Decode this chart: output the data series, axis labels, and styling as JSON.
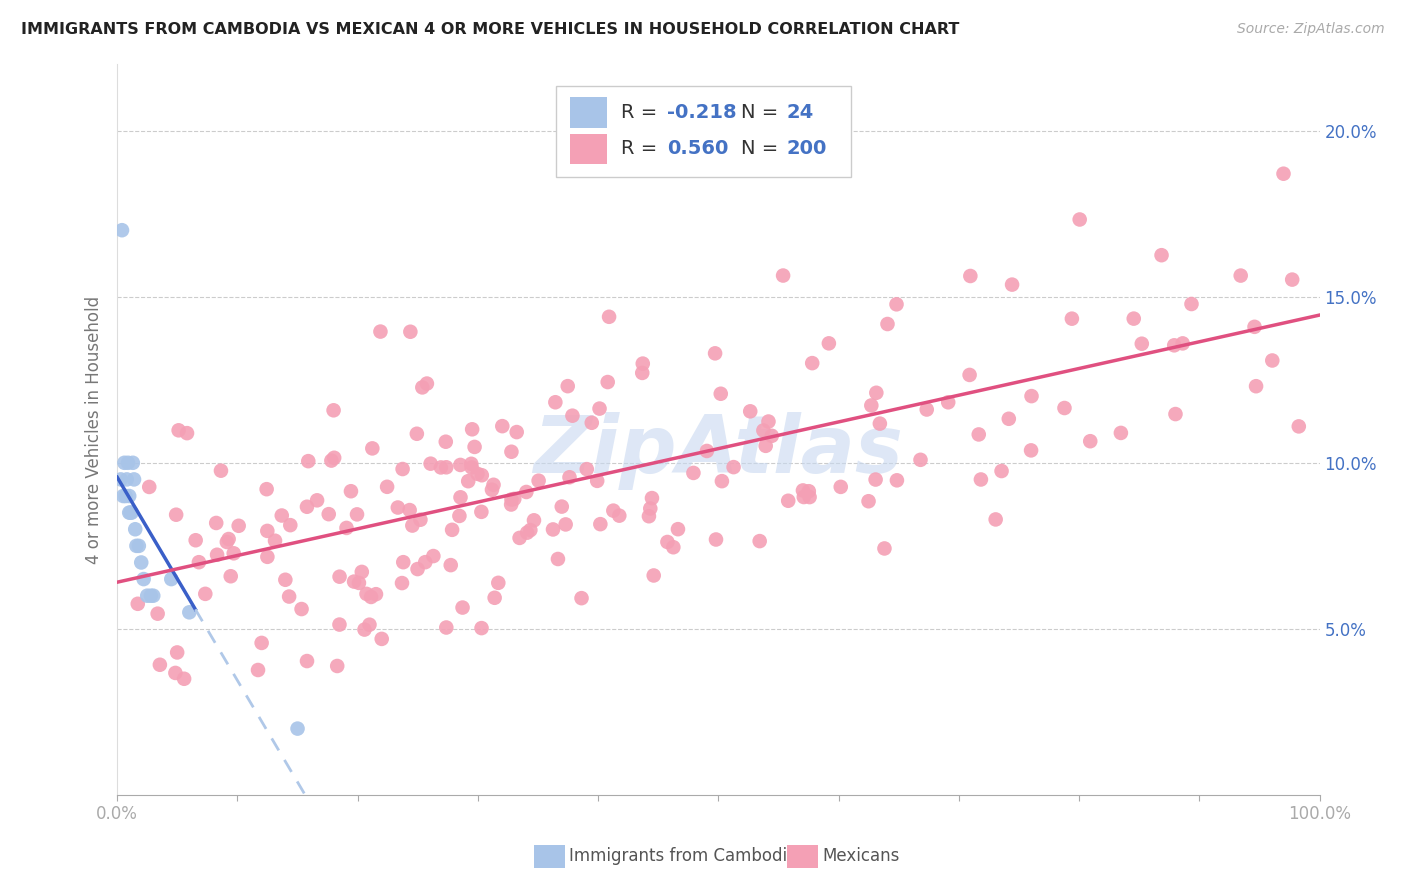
{
  "title": "IMMIGRANTS FROM CAMBODIA VS MEXICAN 4 OR MORE VEHICLES IN HOUSEHOLD CORRELATION CHART",
  "source": "Source: ZipAtlas.com",
  "ylabel": "4 or more Vehicles in Household",
  "xlim": [
    0.0,
    1.0
  ],
  "ylim": [
    0.0,
    0.22
  ],
  "xticks": [
    0.0,
    0.1,
    0.2,
    0.3,
    0.4,
    0.5,
    0.6,
    0.7,
    0.8,
    0.9,
    1.0
  ],
  "xticklabels": [
    "0.0%",
    "",
    "",
    "",
    "",
    "",
    "",
    "",
    "",
    "",
    "100.0%"
  ],
  "yticks": [
    0.0,
    0.05,
    0.1,
    0.15,
    0.2
  ],
  "yticklabels": [
    "",
    "5.0%",
    "10.0%",
    "15.0%",
    "20.0%"
  ],
  "cambodia_R": -0.218,
  "cambodia_N": 24,
  "mexican_R": 0.56,
  "mexican_N": 200,
  "tick_color": "#4472c4",
  "legend_border_color": "#aaaaaa",
  "grid_color": "#cccccc",
  "cambodia_dot_color": "#a8c4e8",
  "mexican_dot_color": "#f4a0b5",
  "cambodia_line_color": "#3a5fc8",
  "mexican_line_color": "#e05080",
  "cambodia_dash_color": "#b0c8e8",
  "watermark_color": "#c8d8f0",
  "legend_text_color": "#4472c4",
  "ylabel_color": "#777777"
}
